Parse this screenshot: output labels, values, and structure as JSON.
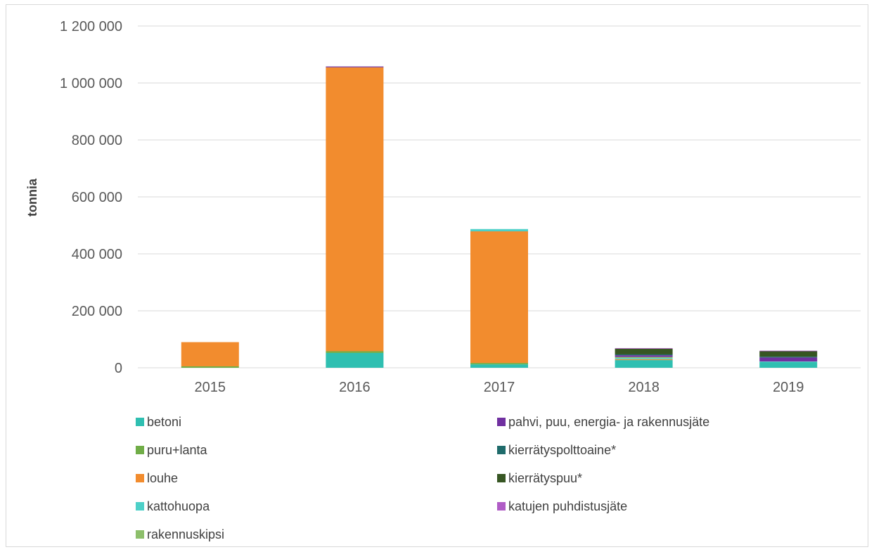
{
  "chart_data": {
    "type": "bar",
    "stacked": true,
    "ylabel": "tonnia",
    "xlabel": "",
    "title": "",
    "categories": [
      "2015",
      "2016",
      "2017",
      "2018",
      "2019"
    ],
    "ylim": [
      0,
      1200000
    ],
    "yticks": [
      0,
      200000,
      400000,
      600000,
      800000,
      1000000,
      1200000
    ],
    "ytick_labels": [
      "0",
      "200 000",
      "400 000",
      "600 000",
      "800 000",
      "1 000 000",
      "1 200 000"
    ],
    "grid": true,
    "legend_position": "bottom",
    "series": [
      {
        "name": "betoni",
        "color": "#2fbfb1",
        "values": [
          0,
          52000,
          12000,
          27000,
          20000
        ]
      },
      {
        "name": "puru+lanta",
        "color": "#70ad47",
        "values": [
          5000,
          6000,
          5000,
          0,
          0
        ]
      },
      {
        "name": "louhe",
        "color": "#f28c2e",
        "values": [
          85000,
          997000,
          462000,
          3000,
          0
        ]
      },
      {
        "name": "kattohuopa",
        "color": "#4dd0c8",
        "values": [
          0,
          0,
          8000,
          4000,
          2000
        ]
      },
      {
        "name": "rakennuskipsi",
        "color": "#8dbf6b",
        "values": [
          0,
          0,
          0,
          4000,
          0
        ]
      },
      {
        "name": "pahvi, puu, energia- ja rakennusjäte",
        "color": "#7030a0",
        "values": [
          0,
          3000,
          0,
          6000,
          14000
        ]
      },
      {
        "name": "kierrätyspolttoaine*",
        "color": "#1f6b6b",
        "values": [
          0,
          0,
          0,
          3000,
          3000
        ]
      },
      {
        "name": "kierrätyspuu*",
        "color": "#375623",
        "values": [
          0,
          0,
          0,
          20000,
          19000
        ]
      },
      {
        "name": "katujen puhdistusjäte",
        "color": "#b05cc6",
        "values": [
          0,
          0,
          0,
          2000,
          2000
        ]
      }
    ]
  },
  "legend": {
    "items": [
      {
        "label": "betoni",
        "color": "#2fbfb1"
      },
      {
        "label": "pahvi, puu, energia- ja rakennusjäte",
        "color": "#7030a0"
      },
      {
        "label": "puru+lanta",
        "color": "#70ad47"
      },
      {
        "label": "kierrätyspolttoaine*",
        "color": "#1f6b6b"
      },
      {
        "label": "louhe",
        "color": "#f28c2e"
      },
      {
        "label": "kierrätyspuu*",
        "color": "#375623"
      },
      {
        "label": "kattohuopa",
        "color": "#4dd0c8"
      },
      {
        "label": "katujen puhdistusjäte",
        "color": "#b05cc6"
      },
      {
        "label": "rakennuskipsi",
        "color": "#8dbf6b"
      }
    ]
  }
}
